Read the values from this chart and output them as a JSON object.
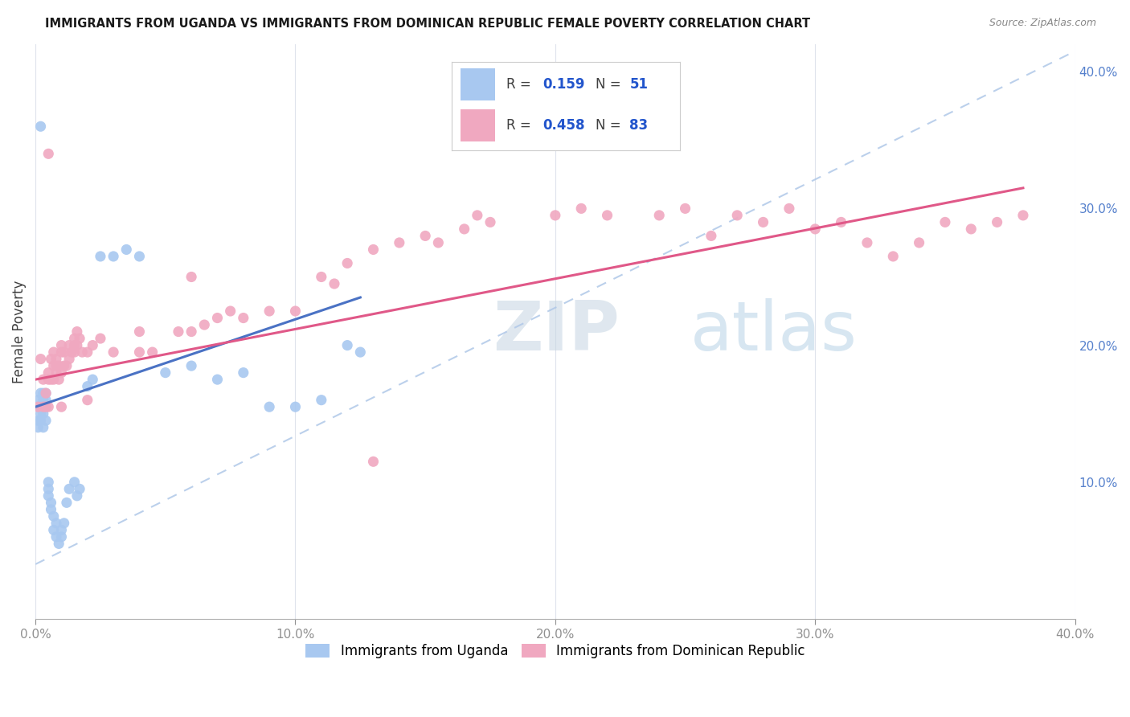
{
  "title": "IMMIGRANTS FROM UGANDA VS IMMIGRANTS FROM DOMINICAN REPUBLIC FEMALE POVERTY CORRELATION CHART",
  "source": "Source: ZipAtlas.com",
  "ylabel": "Female Poverty",
  "xlim": [
    0.0,
    0.4
  ],
  "ylim": [
    0.0,
    0.42
  ],
  "uganda_color": "#a8c8f0",
  "dominican_color": "#f0a8c0",
  "uganda_line_color": "#4a72c4",
  "dominican_line_color": "#e05888",
  "dashed_line_color": "#b0c8e8",
  "uganda_R": 0.159,
  "uganda_N": 51,
  "dominican_R": 0.458,
  "dominican_N": 83,
  "legend_label_color": "#404040",
  "legend_value_color": "#2255cc",
  "watermark_zip_color": "#c8d8e8",
  "watermark_atlas_color": "#b8cce0",
  "uganda_line_x0": 0.0,
  "uganda_line_y0": 0.155,
  "uganda_line_x1": 0.125,
  "uganda_line_y1": 0.235,
  "dominican_line_x0": 0.0,
  "dominican_line_y0": 0.175,
  "dominican_line_x1": 0.38,
  "dominican_line_y1": 0.315,
  "dashed_line_x0": 0.0,
  "dashed_line_y0": 0.04,
  "dashed_line_x1": 0.4,
  "dashed_line_y1": 0.415,
  "uganda_x": [
    0.001,
    0.001,
    0.001,
    0.001,
    0.002,
    0.002,
    0.002,
    0.002,
    0.003,
    0.003,
    0.003,
    0.003,
    0.003,
    0.004,
    0.004,
    0.004,
    0.004,
    0.005,
    0.005,
    0.005,
    0.006,
    0.006,
    0.007,
    0.007,
    0.008,
    0.008,
    0.009,
    0.01,
    0.01,
    0.011,
    0.012,
    0.013,
    0.015,
    0.016,
    0.017,
    0.02,
    0.022,
    0.025,
    0.03,
    0.035,
    0.04,
    0.05,
    0.06,
    0.07,
    0.08,
    0.09,
    0.1,
    0.11,
    0.12,
    0.125,
    0.002
  ],
  "uganda_y": [
    0.155,
    0.14,
    0.145,
    0.16,
    0.155,
    0.165,
    0.145,
    0.15,
    0.16,
    0.15,
    0.155,
    0.165,
    0.14,
    0.145,
    0.155,
    0.16,
    0.165,
    0.1,
    0.095,
    0.09,
    0.085,
    0.08,
    0.075,
    0.065,
    0.06,
    0.07,
    0.055,
    0.06,
    0.065,
    0.07,
    0.085,
    0.095,
    0.1,
    0.09,
    0.095,
    0.17,
    0.175,
    0.265,
    0.265,
    0.27,
    0.265,
    0.18,
    0.185,
    0.175,
    0.18,
    0.155,
    0.155,
    0.16,
    0.2,
    0.195,
    0.36
  ],
  "dominican_x": [
    0.001,
    0.002,
    0.003,
    0.003,
    0.004,
    0.004,
    0.005,
    0.005,
    0.005,
    0.006,
    0.006,
    0.007,
    0.007,
    0.007,
    0.008,
    0.008,
    0.008,
    0.009,
    0.009,
    0.01,
    0.01,
    0.01,
    0.011,
    0.011,
    0.012,
    0.013,
    0.013,
    0.014,
    0.015,
    0.015,
    0.015,
    0.016,
    0.016,
    0.017,
    0.018,
    0.02,
    0.022,
    0.025,
    0.03,
    0.04,
    0.04,
    0.045,
    0.055,
    0.06,
    0.06,
    0.065,
    0.07,
    0.075,
    0.08,
    0.09,
    0.1,
    0.11,
    0.115,
    0.12,
    0.13,
    0.14,
    0.15,
    0.155,
    0.165,
    0.17,
    0.175,
    0.2,
    0.21,
    0.22,
    0.24,
    0.25,
    0.26,
    0.27,
    0.28,
    0.29,
    0.3,
    0.31,
    0.32,
    0.33,
    0.34,
    0.35,
    0.36,
    0.37,
    0.38,
    0.13,
    0.005,
    0.01,
    0.02
  ],
  "dominican_y": [
    0.155,
    0.19,
    0.175,
    0.155,
    0.155,
    0.165,
    0.175,
    0.18,
    0.155,
    0.175,
    0.19,
    0.185,
    0.195,
    0.175,
    0.185,
    0.18,
    0.19,
    0.175,
    0.185,
    0.18,
    0.195,
    0.2,
    0.185,
    0.195,
    0.185,
    0.19,
    0.2,
    0.195,
    0.195,
    0.2,
    0.205,
    0.2,
    0.21,
    0.205,
    0.195,
    0.195,
    0.2,
    0.205,
    0.195,
    0.21,
    0.195,
    0.195,
    0.21,
    0.21,
    0.25,
    0.215,
    0.22,
    0.225,
    0.22,
    0.225,
    0.225,
    0.25,
    0.245,
    0.26,
    0.27,
    0.275,
    0.28,
    0.275,
    0.285,
    0.295,
    0.29,
    0.295,
    0.3,
    0.295,
    0.295,
    0.3,
    0.28,
    0.295,
    0.29,
    0.3,
    0.285,
    0.29,
    0.275,
    0.265,
    0.275,
    0.29,
    0.285,
    0.29,
    0.295,
    0.115,
    0.34,
    0.155,
    0.16
  ]
}
